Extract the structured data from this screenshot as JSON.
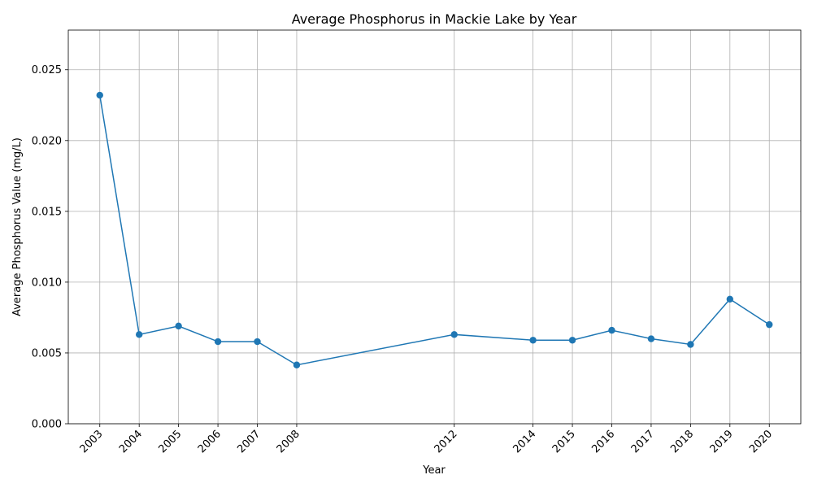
{
  "chart_data": {
    "type": "line",
    "title": "Average Phosphorus in Mackie Lake by Year",
    "xlabel": "Year",
    "ylabel": "Average Phosphorus Value (mg/L)",
    "x": [
      2003,
      2004,
      2005,
      2006,
      2007,
      2008,
      2012,
      2014,
      2015,
      2016,
      2017,
      2018,
      2019,
      2020
    ],
    "x_tick_labels": [
      "2003",
      "2004",
      "2005",
      "2006",
      "2007",
      "2008",
      "2012",
      "2014",
      "2015",
      "2016",
      "2017",
      "2018",
      "2019",
      "2020"
    ],
    "series": [
      {
        "values": [
          0.0232,
          0.0063,
          0.0069,
          0.0058,
          0.0058,
          0.00415,
          0.0063,
          0.0059,
          0.0059,
          0.0066,
          0.006,
          0.0056,
          0.0088,
          0.007
        ],
        "color": "#1f77b4",
        "marker": "circle"
      }
    ],
    "yticks": [
      0.0,
      0.005,
      0.01,
      0.015,
      0.02,
      0.025
    ],
    "y_tick_labels": [
      "0.000",
      "0.005",
      "0.010",
      "0.015",
      "0.020",
      "0.025"
    ],
    "xlim": [
      2002.2,
      2020.8
    ],
    "ylim": [
      0,
      0.0278
    ],
    "grid": true,
    "colors": {
      "line": "#1f77b4",
      "grid": "#b0b0b0",
      "axis": "#000000"
    }
  }
}
